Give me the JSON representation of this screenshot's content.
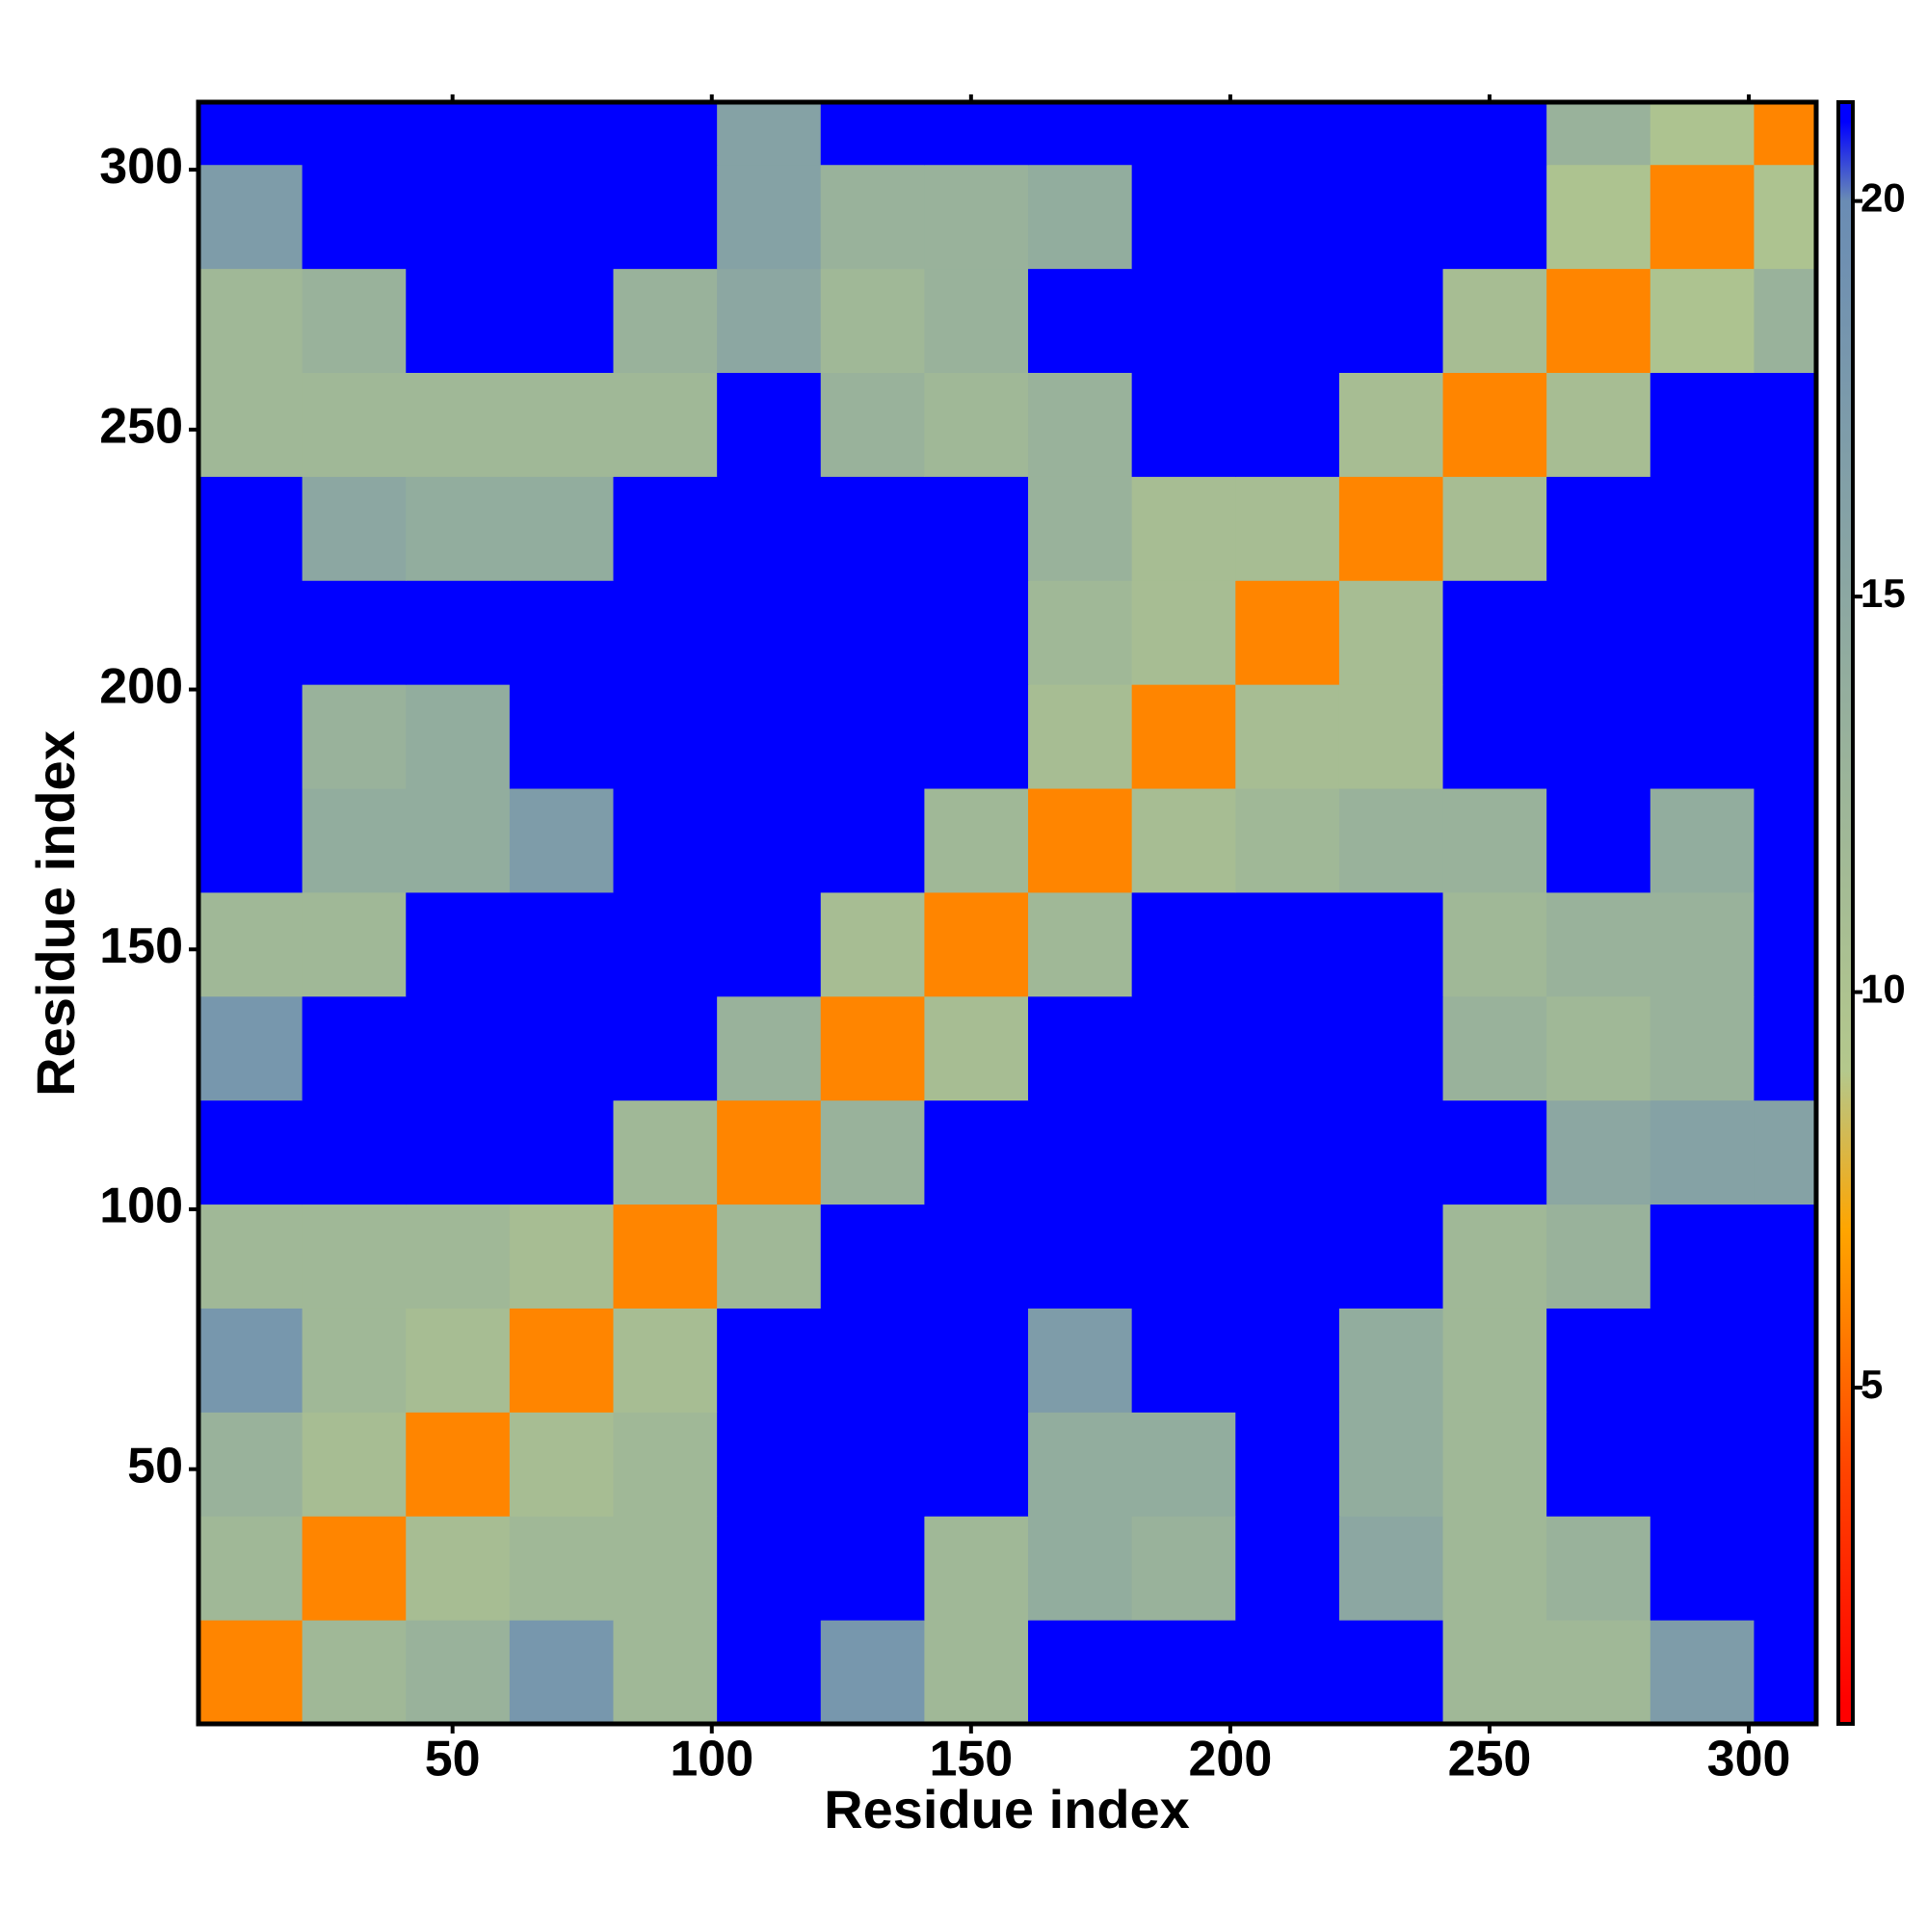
{
  "chart_data": {
    "type": "heatmap",
    "xlabel": "Residue index",
    "ylabel": "Residue index",
    "xlim": [
      1,
      313
    ],
    "ylim": [
      1,
      313
    ],
    "xticks": [
      50,
      100,
      150,
      200,
      250,
      300
    ],
    "yticks": [
      50,
      100,
      150,
      200,
      250,
      300
    ],
    "xbins": [
      1,
      21,
      41,
      61,
      81,
      101,
      121,
      141,
      161,
      181,
      201,
      221,
      241,
      261,
      281,
      301,
      313
    ],
    "ybins": [
      1,
      21,
      41,
      61,
      81,
      101,
      121,
      141,
      161,
      181,
      201,
      221,
      241,
      261,
      281,
      301,
      313
    ],
    "z": [
      [
        6,
        12,
        13,
        18,
        12,
        21,
        18,
        12,
        21,
        21,
        21,
        21,
        12,
        12,
        17,
        21
      ],
      [
        12,
        6,
        11,
        12,
        12,
        21,
        21,
        12,
        14,
        13,
        21,
        15,
        12,
        13,
        21,
        21
      ],
      [
        13,
        11,
        6,
        11,
        12,
        21,
        21,
        21,
        14,
        14,
        21,
        14,
        12,
        21,
        21,
        21
      ],
      [
        18,
        12,
        11,
        6,
        11,
        21,
        21,
        21,
        17,
        21,
        21,
        14,
        12,
        21,
        21,
        21
      ],
      [
        12,
        12,
        12,
        11,
        6,
        12,
        21,
        21,
        21,
        21,
        21,
        21,
        12,
        13,
        21,
        21
      ],
      [
        21,
        21,
        21,
        21,
        12,
        6,
        13,
        21,
        21,
        21,
        21,
        21,
        21,
        15,
        16,
        16
      ],
      [
        18,
        21,
        21,
        21,
        21,
        13,
        6,
        11,
        21,
        21,
        21,
        21,
        13,
        12,
        13,
        21
      ],
      [
        12,
        12,
        21,
        21,
        21,
        21,
        11,
        6,
        12,
        21,
        21,
        21,
        12,
        13,
        13,
        21
      ],
      [
        21,
        14,
        14,
        17,
        21,
        21,
        21,
        12,
        6,
        11,
        12,
        13,
        13,
        21,
        14,
        21
      ],
      [
        21,
        13,
        14,
        21,
        21,
        21,
        21,
        21,
        11,
        6,
        11,
        11,
        21,
        21,
        21,
        21
      ],
      [
        21,
        21,
        21,
        21,
        21,
        21,
        21,
        21,
        12,
        11,
        6,
        11,
        21,
        21,
        21,
        21
      ],
      [
        21,
        15,
        14,
        14,
        21,
        21,
        21,
        21,
        13,
        11,
        11,
        6,
        11,
        21,
        21,
        21
      ],
      [
        12,
        12,
        12,
        12,
        12,
        21,
        13,
        12,
        13,
        21,
        21,
        11,
        6,
        11,
        21,
        21
      ],
      [
        12,
        13,
        21,
        21,
        13,
        15,
        12,
        13,
        21,
        21,
        21,
        21,
        11,
        6,
        10,
        13
      ],
      [
        17,
        21,
        21,
        21,
        21,
        16,
        13,
        13,
        14,
        21,
        21,
        21,
        21,
        10,
        6,
        10
      ],
      [
        21,
        21,
        21,
        21,
        21,
        16,
        21,
        21,
        21,
        21,
        21,
        21,
        21,
        13,
        10,
        6
      ]
    ],
    "zlim": [
      0.75,
      21.25
    ],
    "zticks": [
      5,
      10,
      15,
      20
    ],
    "colorscale": [
      [
        1,
        "#ff0000"
      ],
      [
        4,
        "#ff4500"
      ],
      [
        7,
        "#ffa500"
      ],
      [
        9,
        "#b4c88c"
      ],
      [
        20,
        "#6a8cb4"
      ],
      [
        21,
        "#0000ff"
      ]
    ]
  }
}
